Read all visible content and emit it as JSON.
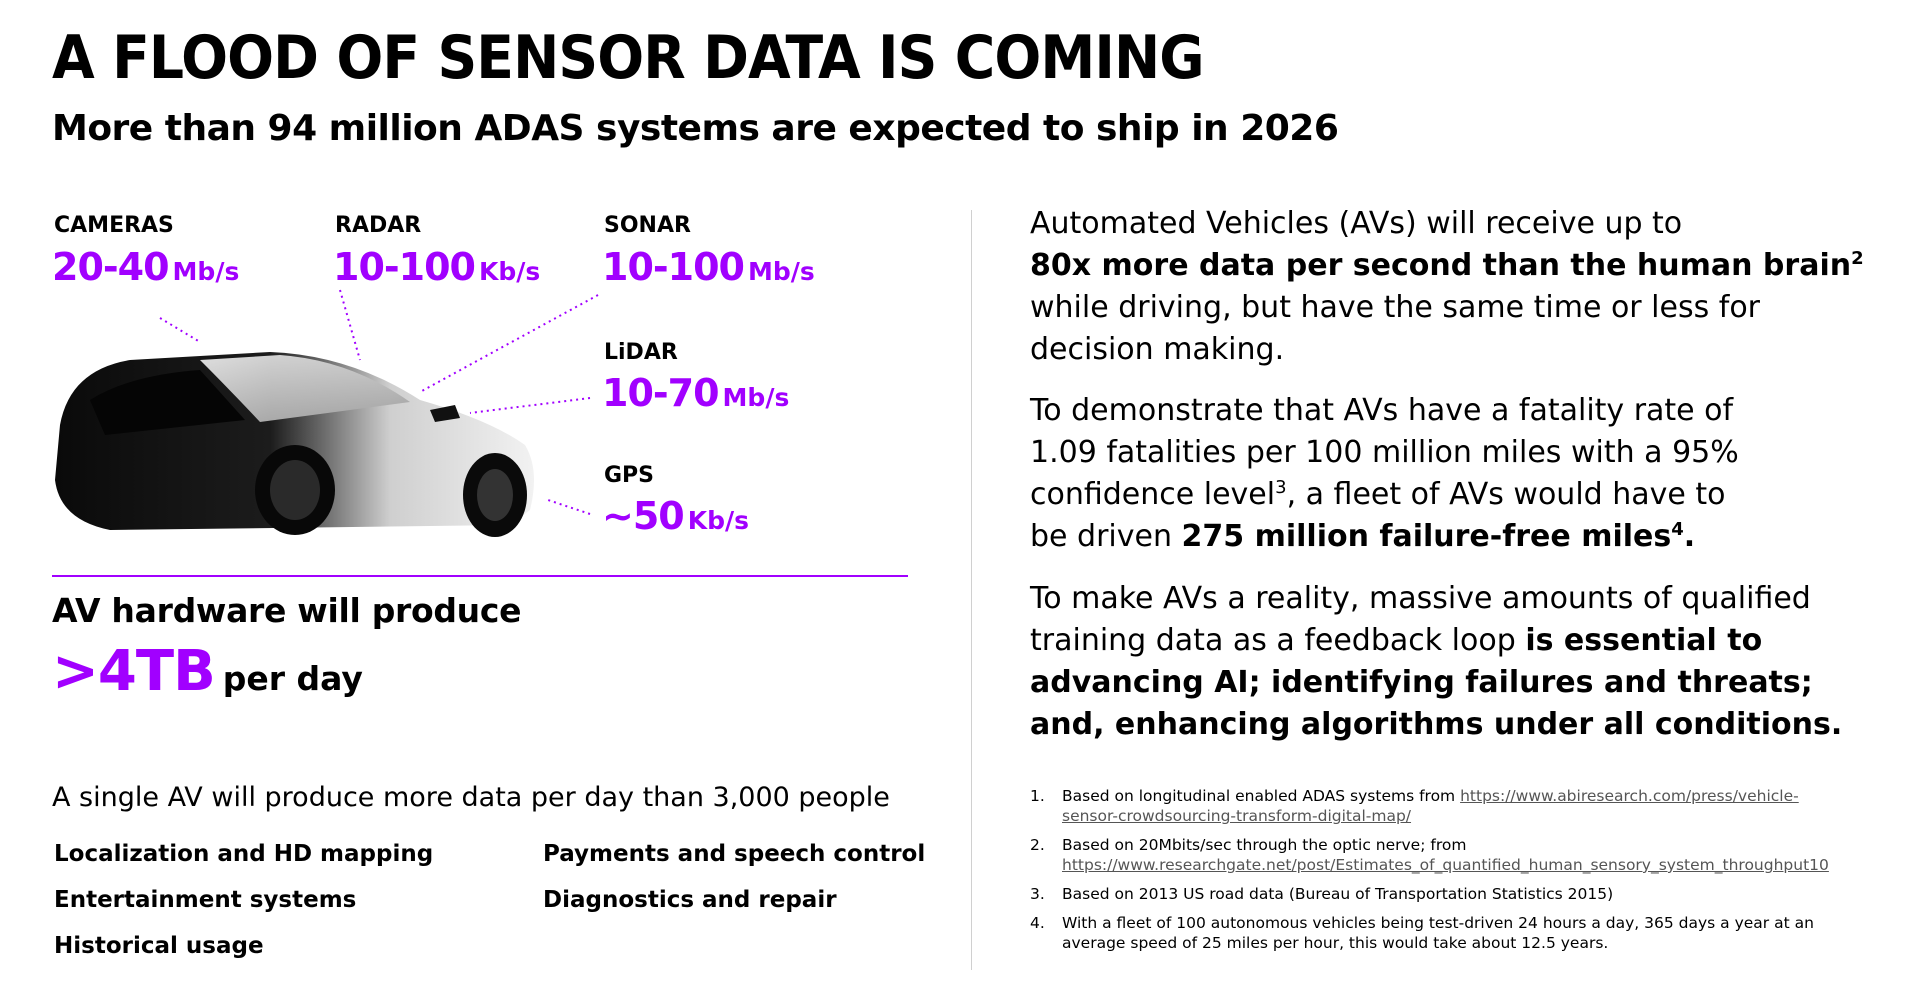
{
  "header": {
    "title": "A FLOOD OF SENSOR DATA IS COMING",
    "subtitle": "More than 94 million ADAS systems are expected to ship in 2026"
  },
  "sensors": {
    "cameras": {
      "label": "CAMERAS",
      "value": "20-40",
      "unit": "Mb/s"
    },
    "radar": {
      "label": "RADAR",
      "value": "10-100",
      "unit": "Kb/s"
    },
    "sonar": {
      "label": "SONAR",
      "value": "10-100",
      "unit": "Mb/s"
    },
    "lidar": {
      "label": "LiDAR",
      "value": "10-70",
      "unit": "Mb/s"
    },
    "gps": {
      "label": "GPS",
      "value": "~50",
      "unit": "Kb/s"
    }
  },
  "hardware": {
    "label": "AV hardware will produce",
    "value": ">4TB",
    "suffix": "per day"
  },
  "comparison": "A single AV will produce more data per day than 3,000 people",
  "uses": {
    "localization": "Localization and HD mapping",
    "payments": "Payments and speech control",
    "entertainment": "Entertainment systems",
    "diagnostics": "Diagnostics and repair",
    "historical": "Historical usage"
  },
  "paragraph1": {
    "line1": "Automated Vehicles (AVs) will receive up to",
    "bold": "80x more data per second than the human brain",
    "sup": "2",
    "rest": "while driving, but have the same time or less for decision making."
  },
  "paragraph2": {
    "text": "To demonstrate that AVs have a fatality rate of 1.09 fatalities per 100 million miles with a 95% confidence level",
    "sup1": "3",
    "text2": ", a fleet of AVs would have to be driven",
    "bold": "275 million failure-free miles",
    "sup2": "4",
    "end": "."
  },
  "paragraph3": {
    "text": "To make AVs a reality, massive amounts of qualified training data as a feedback loop",
    "bold": "is essential to advancing AI; identifying failures and threats; and, enhancing algorithms under all conditions."
  },
  "footnotes": [
    {
      "num": "1.",
      "text": "Based on longitudinal enabled ADAS systems from ",
      "link": "https://www.abiresearch.com/press/vehicle-sensor-crowdsourcing-transform-digital-map/"
    },
    {
      "num": "2.",
      "text": "Based on 20Mbits/sec through the optic nerve; from ",
      "link": "https://www.researchgate.net/post/Estimates_of_quantified_human_sensory_system_throughput10"
    },
    {
      "num": "3.",
      "text": "Based on 2013 US road data (Bureau of Transportation Statistics 2015)",
      "link": ""
    },
    {
      "num": "4.",
      "text": "With a fleet of 100 autonomous vehicles being test-driven 24 hours a day, 365 days a year at an average speed of 25 miles per hour, this would take about 12.5 years.",
      "link": ""
    }
  ],
  "colors": {
    "accent": "#a100ff",
    "text": "#000000",
    "divider": "#d0d0d0"
  },
  "icons": {
    "car": "car-silhouette-image"
  }
}
